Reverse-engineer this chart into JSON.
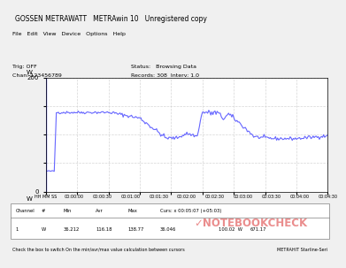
{
  "title": "GOSSEN METRAWATT   METRAwin 10   Unregistered copy",
  "y_max": 200,
  "y_min": 0,
  "y_label": "W",
  "x_ticks": [
    "00:00:00",
    "00:00:30",
    "00:01:00",
    "00:01:30",
    "00:02:00",
    "00:02:30",
    "00:03:00",
    "00:03:30",
    "00:04:00",
    "00:04:30"
  ],
  "line_color": "#6666ff",
  "bg_color": "#f0f0f0",
  "plot_bg": "#ffffff",
  "grid_color": "#cccccc",
  "table_min": "36.212",
  "table_avg": "116.18",
  "table_max": "138.77",
  "table_cur_x": "00:05:07 (+05:03)",
  "table_cur_val": "100.02",
  "table_extra": "671.17",
  "hh_mm_ss": "HH MM SS",
  "notebookcheck_color": "#e05050",
  "menu_text": "File   Edit   View   Device   Options   Help",
  "trig_off": "Trig: OFF",
  "chan": "Chan: 123456789",
  "status1": "Status:   Browsing Data",
  "status2": "Records: 308  Interv: 1.0",
  "bottom_left": "Check the box to switch On the min/avr/max value calculation between cursors",
  "bottom_right": "METRAHIT Starline-Seri"
}
